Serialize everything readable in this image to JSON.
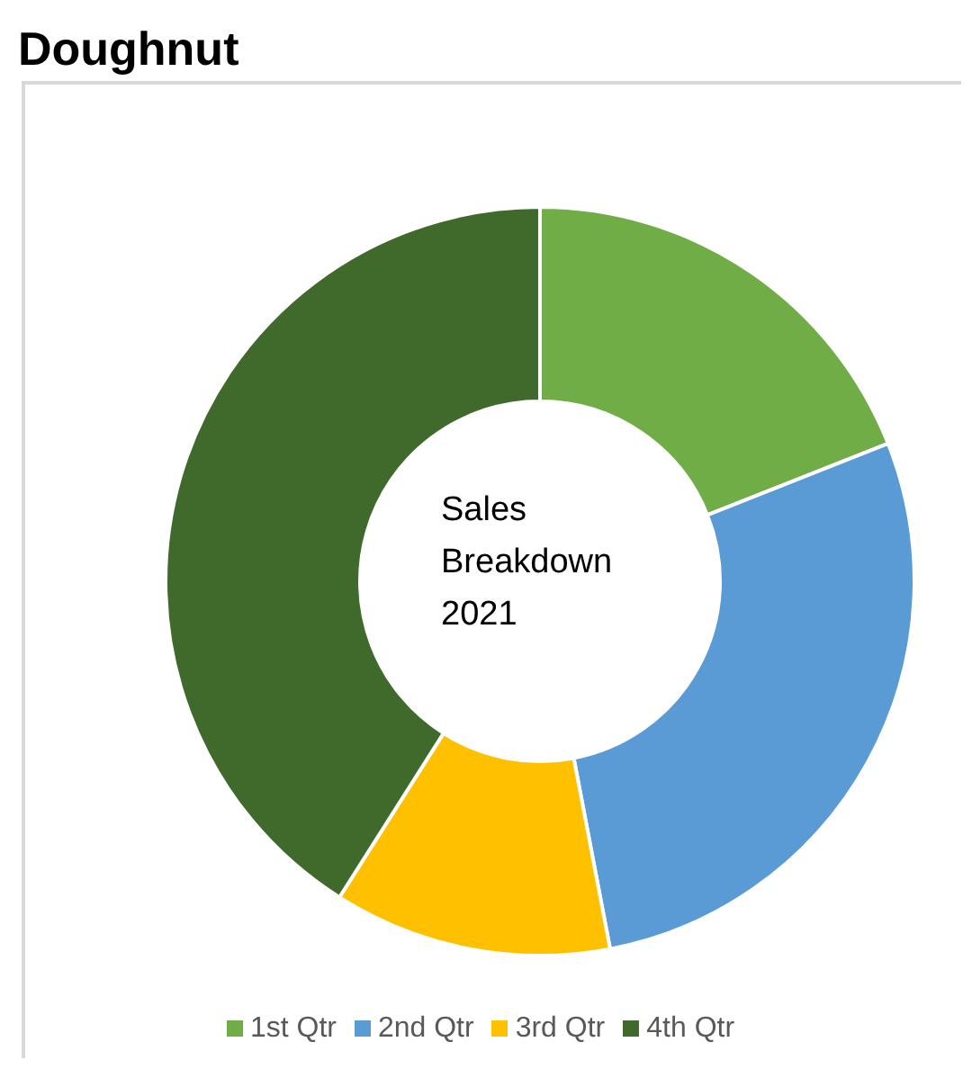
{
  "chart_data": {
    "type": "donut",
    "title": "Doughnut",
    "annotations": [
      "Sales Breakdown 2021"
    ],
    "categories": [
      "1st Qtr",
      "2nd Qtr",
      "3rd Qtr",
      "4th Qtr"
    ],
    "values": [
      19,
      28,
      12,
      41
    ],
    "colors": [
      "#70ad47",
      "#5b9bd5",
      "#ffc000",
      "#406a2c"
    ],
    "legend": "bottom"
  }
}
